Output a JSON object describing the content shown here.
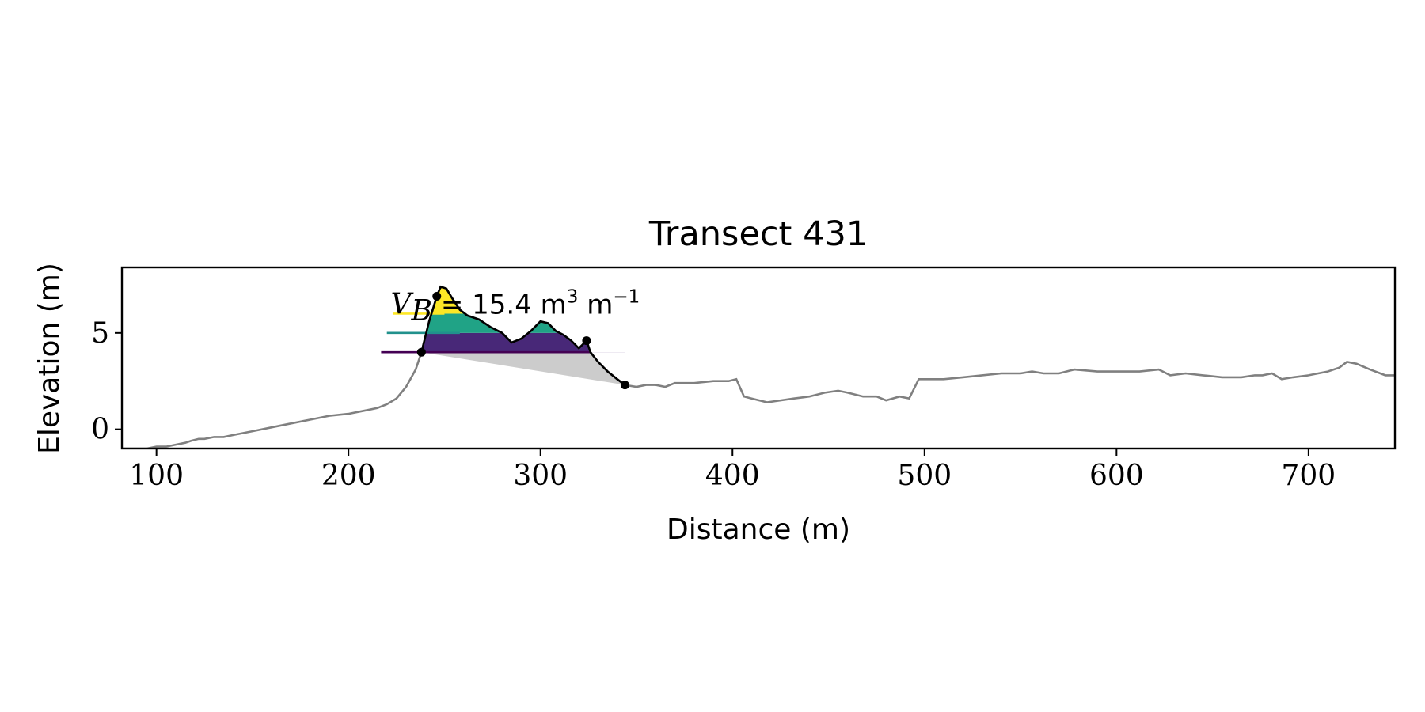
{
  "chart_data": {
    "type": "line",
    "title": "Transect 431",
    "xlabel": "Distance (m)",
    "ylabel": "Elevation (m)",
    "xlim": [
      82,
      745
    ],
    "ylim": [
      -1.0,
      8.4
    ],
    "xticks": [
      100,
      200,
      300,
      400,
      500,
      600,
      700
    ],
    "yticks": [
      0,
      5
    ],
    "grid": false,
    "legend": "none",
    "annotation": {
      "var_main": "V",
      "var_sub": "B",
      "text": " = 15.4 m",
      "exp1": "3",
      "unit2": " m",
      "exp2": "−1",
      "x": 222,
      "y": 6.5
    },
    "series": [
      {
        "kind": "profile",
        "color": "#808080",
        "x": [
          82,
          88,
          95,
          100,
          105,
          110,
          115,
          118,
          122,
          125,
          130,
          135,
          140,
          150,
          160,
          170,
          180,
          190,
          200,
          205,
          210,
          215,
          220,
          225,
          230,
          235,
          238,
          242,
          246,
          248,
          251,
          254,
          258,
          262,
          268,
          274,
          280,
          285,
          290,
          295,
          300,
          304,
          308,
          312,
          316,
          320,
          324,
          326,
          330,
          335,
          340,
          344,
          350,
          355,
          360,
          365,
          370,
          375,
          380,
          390,
          398,
          402,
          406,
          410,
          418,
          425,
          432,
          440,
          448,
          455,
          460,
          468,
          475,
          480,
          487,
          492,
          497,
          503,
          510,
          520,
          530,
          540,
          550,
          556,
          562,
          570,
          578,
          590,
          600,
          612,
          622,
          628,
          636,
          645,
          655,
          665,
          672,
          676,
          681,
          686,
          692,
          700,
          710,
          716,
          720,
          725,
          732,
          740,
          745
        ],
        "y": [
          -1.0,
          -1.0,
          -1.0,
          -0.9,
          -0.9,
          -0.8,
          -0.7,
          -0.6,
          -0.5,
          -0.5,
          -0.4,
          -0.4,
          -0.3,
          -0.1,
          0.1,
          0.3,
          0.5,
          0.7,
          0.8,
          0.9,
          1.0,
          1.1,
          1.3,
          1.6,
          2.2,
          3.1,
          4.0,
          5.6,
          6.9,
          7.4,
          7.3,
          6.8,
          6.2,
          5.9,
          5.7,
          5.3,
          5.0,
          4.5,
          4.7,
          5.1,
          5.6,
          5.5,
          5.1,
          4.9,
          4.6,
          4.2,
          4.6,
          4.0,
          3.5,
          3.0,
          2.6,
          2.3,
          2.2,
          2.3,
          2.3,
          2.2,
          2.4,
          2.4,
          2.4,
          2.5,
          2.5,
          2.6,
          1.7,
          1.6,
          1.4,
          1.5,
          1.6,
          1.7,
          1.9,
          2.0,
          1.9,
          1.7,
          1.7,
          1.5,
          1.7,
          1.6,
          2.6,
          2.6,
          2.6,
          2.7,
          2.8,
          2.9,
          2.9,
          3.0,
          2.9,
          2.9,
          3.1,
          3.0,
          3.0,
          3.0,
          3.1,
          2.8,
          2.9,
          2.8,
          2.7,
          2.7,
          2.8,
          2.8,
          2.9,
          2.6,
          2.7,
          2.8,
          3.0,
          3.2,
          3.5,
          3.4,
          3.1,
          2.8,
          2.8
        ]
      },
      {
        "kind": "dune-crest-outline",
        "color": "#000000",
        "x": [
          238,
          242,
          246,
          248,
          251,
          254,
          258,
          262,
          268,
          274,
          280,
          285,
          290,
          295,
          300,
          304,
          308,
          312,
          316,
          320,
          324,
          326,
          330,
          335,
          340,
          344
        ],
        "y": [
          4.0,
          5.6,
          6.9,
          7.4,
          7.3,
          6.8,
          6.2,
          5.9,
          5.7,
          5.3,
          5.0,
          4.5,
          4.7,
          5.1,
          5.6,
          5.5,
          5.1,
          4.9,
          4.6,
          4.2,
          4.6,
          4.0,
          3.5,
          3.0,
          2.6,
          2.3
        ]
      }
    ],
    "baseline_wedge": {
      "color": "#cccccc",
      "x": [
        238,
        326,
        330,
        335,
        340,
        344
      ],
      "y_top": [
        4.0,
        4.0,
        3.5,
        3.0,
        2.6,
        2.3
      ],
      "y_bottom_start": 4.0,
      "y_bottom_end": 2.3
    },
    "bands": [
      {
        "lower": 4.0,
        "upper": 5.0,
        "color": "#482878",
        "line_color": "#440154",
        "line_x": [
          217,
          326
        ]
      },
      {
        "lower": 5.0,
        "upper": 6.0,
        "color": "#20a386",
        "line_color": "#21918c",
        "line_x": [
          220,
          258
        ]
      },
      {
        "lower": 6.0,
        "upper": 8.4,
        "color": "#fde725",
        "line_color": "#fde725",
        "line_x": [
          223,
          250
        ]
      }
    ],
    "markers": [
      {
        "x": 238,
        "y": 4.0
      },
      {
        "x": 246,
        "y": 6.9
      },
      {
        "x": 324,
        "y": 4.6
      },
      {
        "x": 344,
        "y": 2.3
      }
    ]
  }
}
